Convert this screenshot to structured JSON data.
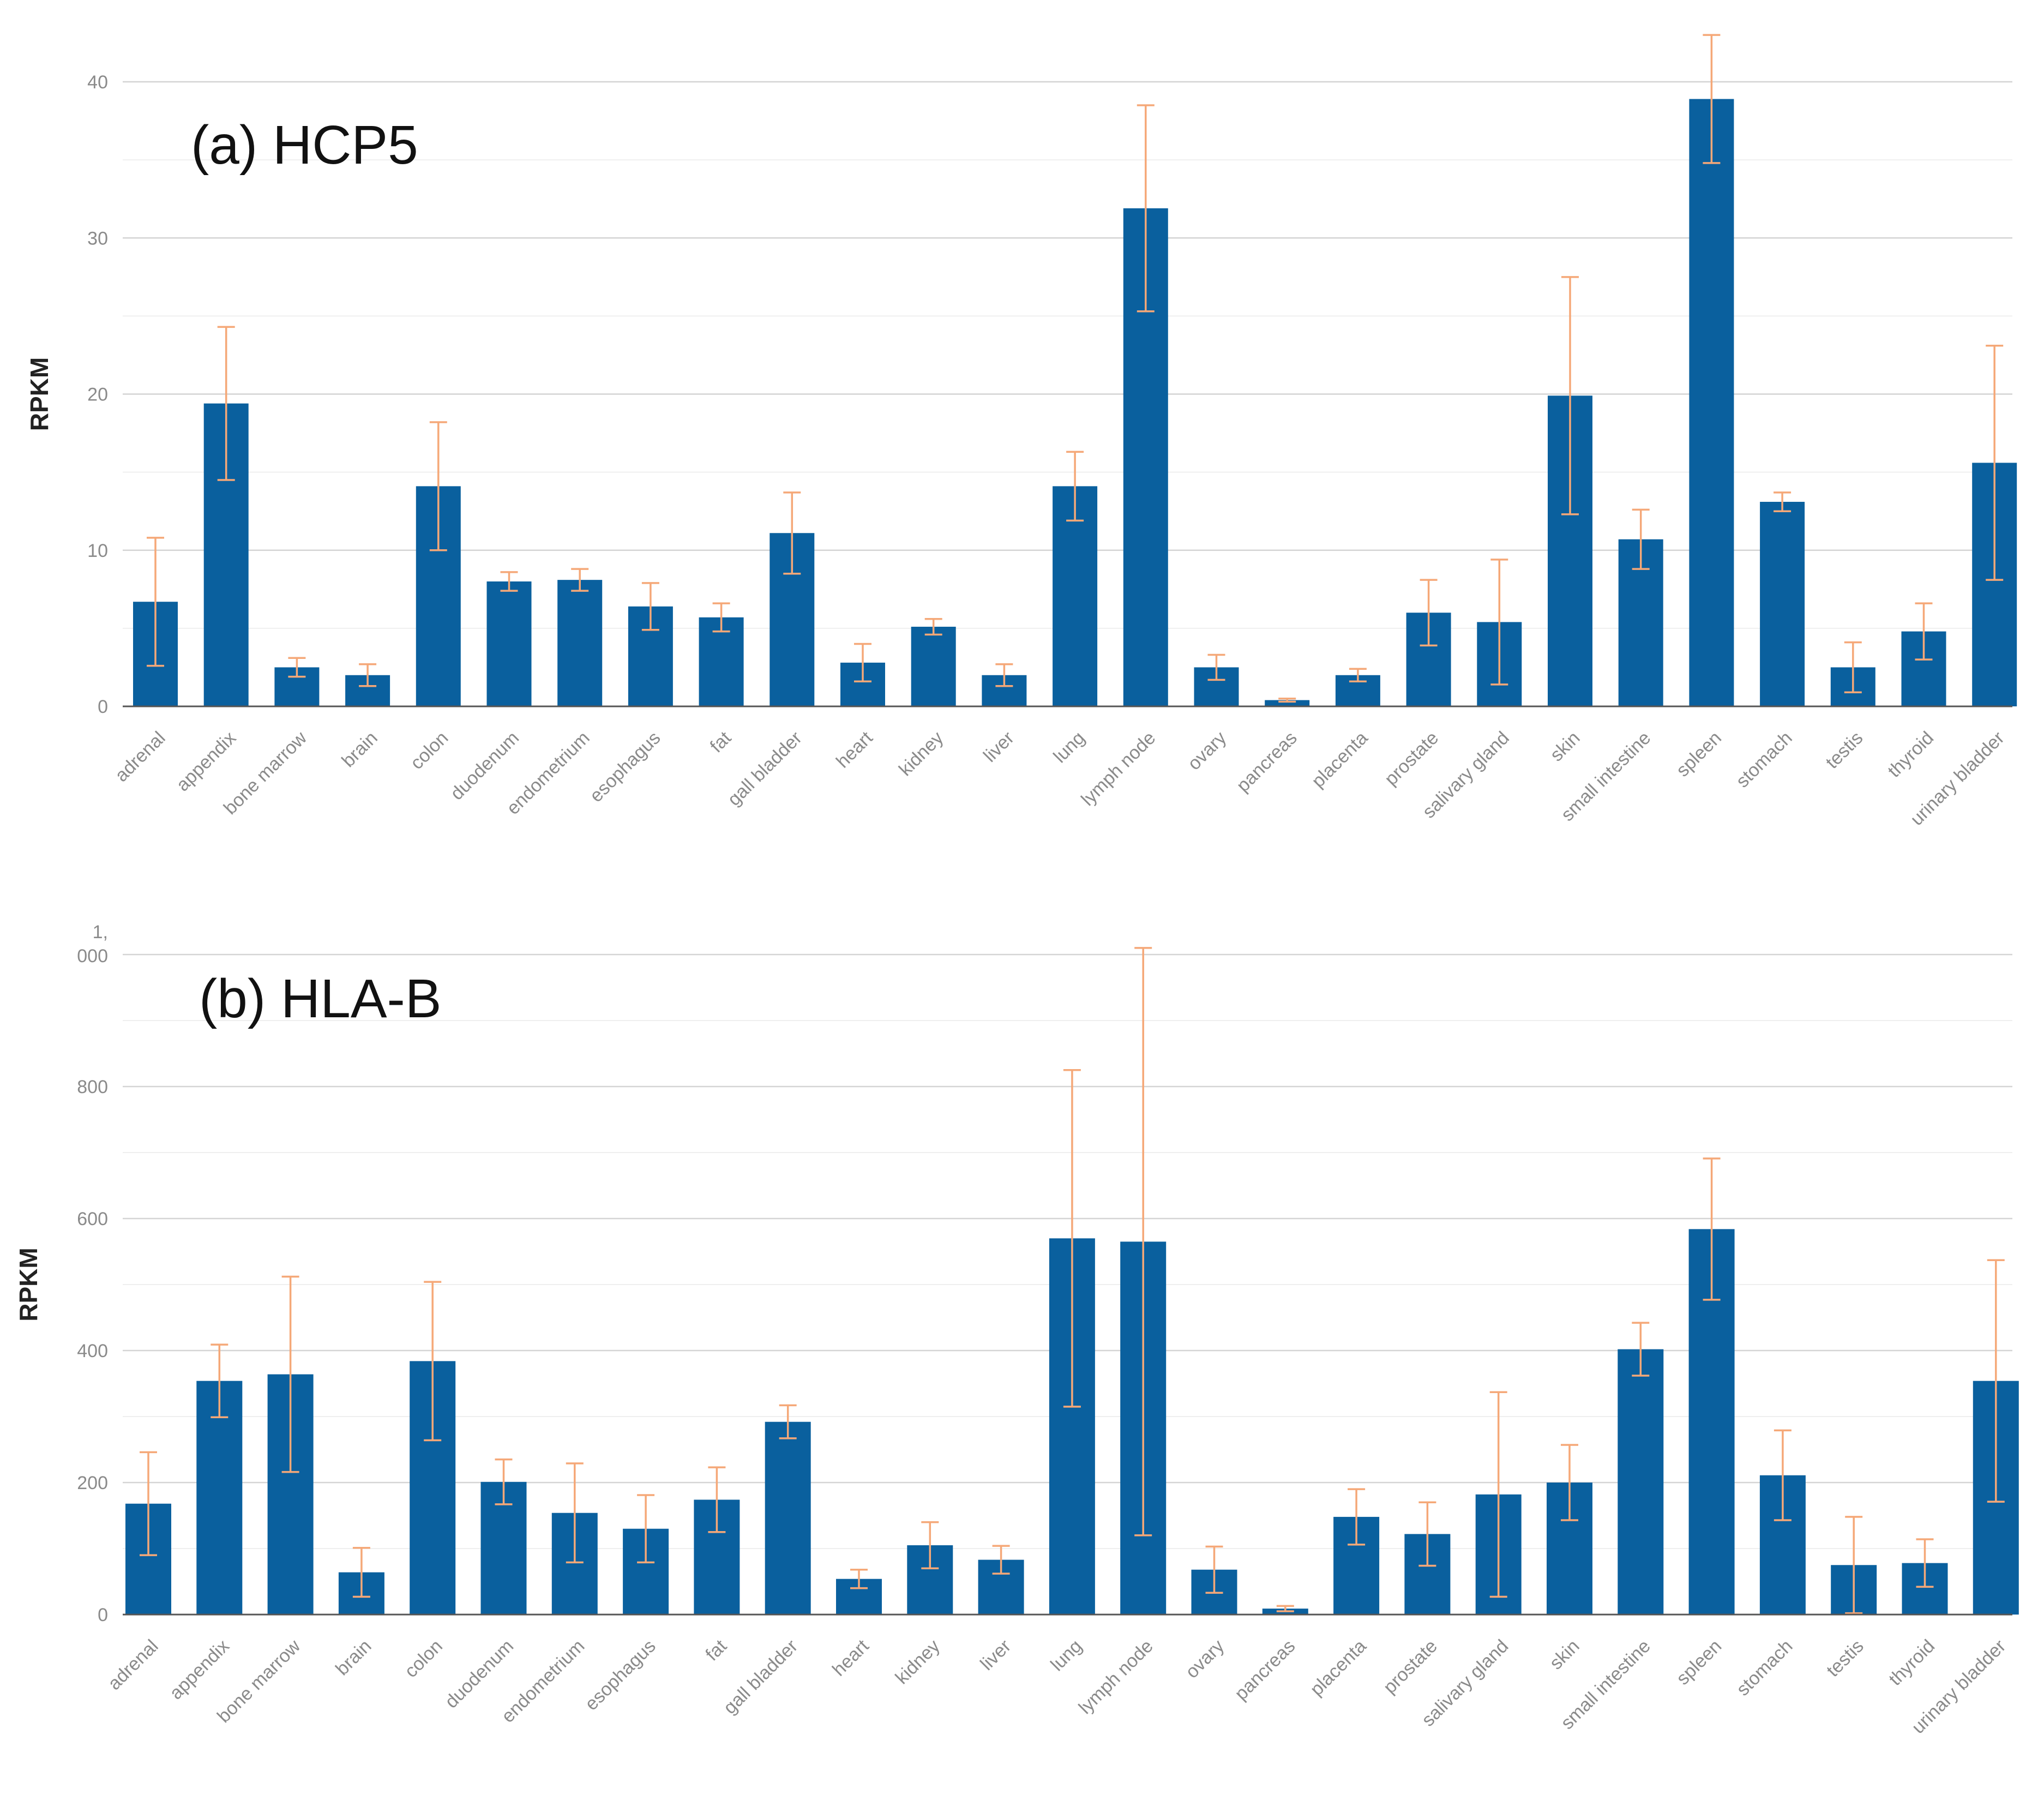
{
  "chart_data": [
    {
      "type": "bar",
      "title": "(a) HCP5",
      "xlabel": "",
      "ylabel": "RPKM",
      "ylim": [
        0,
        40
      ],
      "yticks": [
        0,
        10,
        20,
        30,
        40
      ],
      "ytick_labels": [
        "0",
        "10",
        "20",
        "30",
        "40"
      ],
      "grid": true,
      "bar_color": "#0a609e",
      "error_color": "#f5a878",
      "categories": [
        "adrenal",
        "appendix",
        "bone marrow",
        "brain",
        "colon",
        "duodenum",
        "endometrium",
        "esophagus",
        "fat",
        "gall bladder",
        "heart",
        "kidney",
        "liver",
        "lung",
        "lymph node",
        "ovary",
        "pancreas",
        "placenta",
        "prostate",
        "salivary gland",
        "skin",
        "small intestine",
        "spleen",
        "stomach",
        "testis",
        "thyroid",
        "urinary bladder"
      ],
      "values": [
        6.7,
        19.4,
        2.5,
        2.0,
        14.1,
        8.0,
        8.1,
        6.4,
        5.7,
        11.1,
        2.8,
        5.1,
        2.0,
        14.1,
        31.9,
        2.5,
        0.4,
        2.0,
        6.0,
        5.4,
        19.9,
        10.7,
        38.9,
        13.1,
        2.5,
        4.8,
        15.6
      ],
      "errors": [
        4.1,
        4.9,
        0.6,
        0.7,
        4.1,
        0.6,
        0.7,
        1.5,
        0.9,
        2.6,
        1.2,
        0.5,
        0.7,
        2.2,
        6.6,
        0.8,
        0.1,
        0.4,
        2.1,
        4.0,
        7.6,
        1.9,
        4.1,
        0.6,
        1.6,
        1.8,
        7.5
      ]
    },
    {
      "type": "bar",
      "title": "(b) HLA-B",
      "xlabel": "",
      "ylabel": "RPKM",
      "ylim": [
        0,
        1000
      ],
      "yticks": [
        0,
        200,
        400,
        600,
        800,
        1000
      ],
      "ytick_labels": [
        "0",
        "200",
        "400",
        "600",
        "800",
        "1,\n000"
      ],
      "grid": true,
      "bar_color": "#0a609e",
      "error_color": "#f5a878",
      "categories": [
        "adrenal",
        "appendix",
        "bone marrow",
        "brain",
        "colon",
        "duodenum",
        "endometrium",
        "esophagus",
        "fat",
        "gall bladder",
        "heart",
        "kidney",
        "liver",
        "lung",
        "lymph node",
        "ovary",
        "pancreas",
        "placenta",
        "prostate",
        "salivary gland",
        "skin",
        "small intestine",
        "spleen",
        "stomach",
        "testis",
        "thyroid",
        "urinary bladder"
      ],
      "values": [
        168,
        354,
        364,
        64,
        384,
        201,
        154,
        130,
        174,
        292,
        54,
        105,
        83,
        570,
        565,
        68,
        9,
        148,
        122,
        182,
        200,
        402,
        584,
        211,
        75,
        78,
        354
      ],
      "errors": [
        78,
        55,
        148,
        37,
        120,
        34,
        75,
        51,
        49,
        25,
        14,
        35,
        21,
        255,
        445,
        35,
        4,
        42,
        48,
        155,
        57,
        40,
        107,
        68,
        73,
        36,
        183
      ]
    }
  ]
}
